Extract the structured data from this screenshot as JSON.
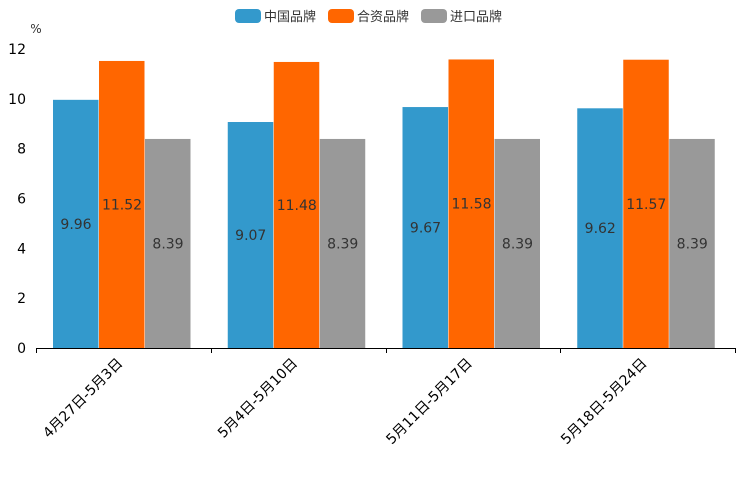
{
  "chart_data": {
    "type": "bar",
    "unit": "%",
    "categories": [
      "4月27日-5月3日",
      "5月4日-5月10日",
      "5月11日-5月17日",
      "5月18日-5月24日"
    ],
    "series": [
      {
        "name": "中国品牌",
        "color": "#3399cc",
        "values": [
          9.96,
          9.07,
          9.67,
          9.62
        ],
        "labels": [
          "9.96",
          "9.07",
          "9.67",
          "9.62"
        ]
      },
      {
        "name": "合资品牌",
        "color": "#ff6600",
        "values": [
          11.52,
          11.48,
          11.58,
          11.57
        ],
        "labels": [
          "11.52",
          "11.48",
          "11.58",
          "11.57"
        ]
      },
      {
        "name": "进口品牌",
        "color": "#999999",
        "values": [
          8.39,
          8.39,
          8.39,
          8.39
        ],
        "labels": [
          "8.39",
          "8.39",
          "8.39",
          "8.39"
        ]
      }
    ],
    "ylim": [
      0,
      12
    ],
    "yticks": [
      "0",
      "2",
      "4",
      "6",
      "8",
      "10",
      "12"
    ],
    "legend_position": "top-center",
    "grid": false
  }
}
